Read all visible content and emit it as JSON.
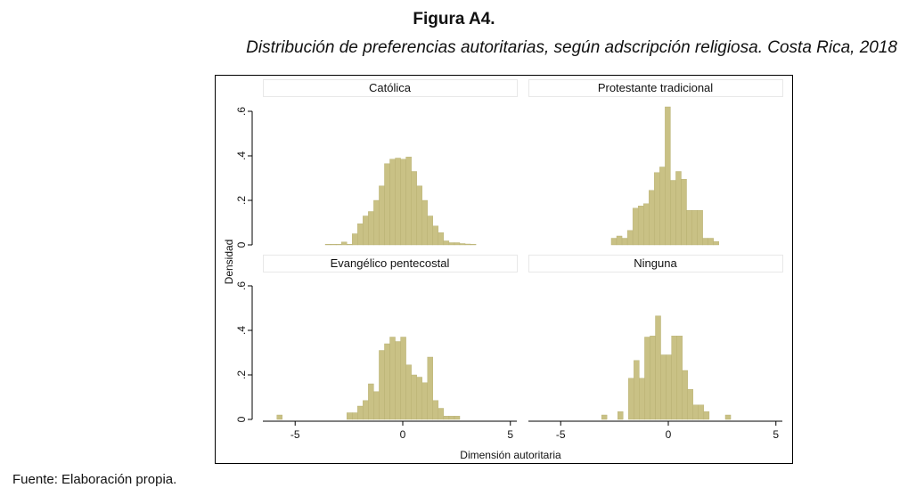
{
  "figure": {
    "title": "Figura A4.",
    "subtitle": "Distribución de preferencias autoritarias, según adscripción religiosa. Costa Rica, 2018",
    "source": "Fuente: Elaboración propia."
  },
  "chart_data": {
    "type": "bar",
    "kind": "histogram",
    "xlabel": "Dimensión autoritaria",
    "ylabel": "Densidad",
    "xlim": [
      -6.5,
      5.3
    ],
    "ylim": [
      0,
      0.65
    ],
    "xticks": [
      "-5",
      "0",
      "5"
    ],
    "xtick_values": [
      -5,
      0,
      5
    ],
    "yticks": [
      "0",
      ".2",
      ".4",
      ".6"
    ],
    "ytick_values": [
      0,
      0.2,
      0.4,
      0.6
    ],
    "bar_color": "#c9c185",
    "bar_edge_color": "#b5ad6e",
    "strip_bg": "#ffffff",
    "strip_border": "#e8e8e8",
    "grid": false,
    "panels": [
      {
        "label": "Católica",
        "bin_width": 0.25,
        "bars": [
          {
            "x0": -3.6,
            "y": 0.003
          },
          {
            "x0": -3.35,
            "y": 0.003
          },
          {
            "x0": -3.1,
            "y": 0.003
          },
          {
            "x0": -2.85,
            "y": 0.013
          },
          {
            "x0": -2.6,
            "y": 0.003
          },
          {
            "x0": -2.35,
            "y": 0.05
          },
          {
            "x0": -2.1,
            "y": 0.095
          },
          {
            "x0": -1.85,
            "y": 0.13
          },
          {
            "x0": -1.6,
            "y": 0.15
          },
          {
            "x0": -1.35,
            "y": 0.2
          },
          {
            "x0": -1.1,
            "y": 0.265
          },
          {
            "x0": -0.85,
            "y": 0.365
          },
          {
            "x0": -0.6,
            "y": 0.385
          },
          {
            "x0": -0.35,
            "y": 0.39
          },
          {
            "x0": -0.1,
            "y": 0.385
          },
          {
            "x0": 0.15,
            "y": 0.395
          },
          {
            "x0": 0.4,
            "y": 0.33
          },
          {
            "x0": 0.65,
            "y": 0.265
          },
          {
            "x0": 0.9,
            "y": 0.2
          },
          {
            "x0": 1.15,
            "y": 0.13
          },
          {
            "x0": 1.4,
            "y": 0.085
          },
          {
            "x0": 1.65,
            "y": 0.055
          },
          {
            "x0": 1.9,
            "y": 0.018
          },
          {
            "x0": 2.15,
            "y": 0.01
          },
          {
            "x0": 2.4,
            "y": 0.01
          },
          {
            "x0": 2.65,
            "y": 0.006
          },
          {
            "x0": 2.9,
            "y": 0.004
          },
          {
            "x0": 3.15,
            "y": 0.003
          }
        ]
      },
      {
        "label": "Protestante tradicional",
        "bin_width": 0.25,
        "bars": [
          {
            "x0": -2.65,
            "y": 0.03
          },
          {
            "x0": -2.4,
            "y": 0.04
          },
          {
            "x0": -2.15,
            "y": 0.03
          },
          {
            "x0": -1.9,
            "y": 0.065
          },
          {
            "x0": -1.65,
            "y": 0.165
          },
          {
            "x0": -1.4,
            "y": 0.175
          },
          {
            "x0": -1.15,
            "y": 0.185
          },
          {
            "x0": -0.9,
            "y": 0.245
          },
          {
            "x0": -0.65,
            "y": 0.325
          },
          {
            "x0": -0.4,
            "y": 0.35
          },
          {
            "x0": -0.15,
            "y": 0.62
          },
          {
            "x0": 0.1,
            "y": 0.29
          },
          {
            "x0": 0.35,
            "y": 0.33
          },
          {
            "x0": 0.6,
            "y": 0.295
          },
          {
            "x0": 0.85,
            "y": 0.155
          },
          {
            "x0": 1.1,
            "y": 0.155
          },
          {
            "x0": 1.35,
            "y": 0.155
          },
          {
            "x0": 1.6,
            "y": 0.03
          },
          {
            "x0": 1.85,
            "y": 0.03
          },
          {
            "x0": 2.1,
            "y": 0.015
          }
        ]
      },
      {
        "label": "Evangélico pentecostal",
        "bin_width": 0.25,
        "bars": [
          {
            "x0": -5.85,
            "y": 0.02
          },
          {
            "x0": -2.6,
            "y": 0.03
          },
          {
            "x0": -2.35,
            "y": 0.03
          },
          {
            "x0": -2.1,
            "y": 0.06
          },
          {
            "x0": -1.85,
            "y": 0.085
          },
          {
            "x0": -1.6,
            "y": 0.16
          },
          {
            "x0": -1.35,
            "y": 0.125
          },
          {
            "x0": -1.1,
            "y": 0.31
          },
          {
            "x0": -0.85,
            "y": 0.34
          },
          {
            "x0": -0.6,
            "y": 0.37
          },
          {
            "x0": -0.35,
            "y": 0.35
          },
          {
            "x0": -0.1,
            "y": 0.37
          },
          {
            "x0": 0.15,
            "y": 0.245
          },
          {
            "x0": 0.4,
            "y": 0.2
          },
          {
            "x0": 0.65,
            "y": 0.19
          },
          {
            "x0": 0.9,
            "y": 0.165
          },
          {
            "x0": 1.15,
            "y": 0.28
          },
          {
            "x0": 1.4,
            "y": 0.085
          },
          {
            "x0": 1.65,
            "y": 0.05
          },
          {
            "x0": 1.9,
            "y": 0.015
          },
          {
            "x0": 2.15,
            "y": 0.015
          },
          {
            "x0": 2.4,
            "y": 0.015
          }
        ]
      },
      {
        "label": "Ninguna",
        "bin_width": 0.25,
        "bars": [
          {
            "x0": -3.1,
            "y": 0.02
          },
          {
            "x0": -2.35,
            "y": 0.035
          },
          {
            "x0": -1.85,
            "y": 0.185
          },
          {
            "x0": -1.6,
            "y": 0.265
          },
          {
            "x0": -1.35,
            "y": 0.185
          },
          {
            "x0": -1.1,
            "y": 0.37
          },
          {
            "x0": -0.85,
            "y": 0.375
          },
          {
            "x0": -0.6,
            "y": 0.465
          },
          {
            "x0": -0.35,
            "y": 0.29
          },
          {
            "x0": -0.1,
            "y": 0.29
          },
          {
            "x0": 0.15,
            "y": 0.375
          },
          {
            "x0": 0.4,
            "y": 0.375
          },
          {
            "x0": 0.65,
            "y": 0.22
          },
          {
            "x0": 0.9,
            "y": 0.135
          },
          {
            "x0": 1.15,
            "y": 0.065
          },
          {
            "x0": 1.4,
            "y": 0.065
          },
          {
            "x0": 1.65,
            "y": 0.035
          },
          {
            "x0": 2.65,
            "y": 0.02
          }
        ]
      }
    ]
  }
}
